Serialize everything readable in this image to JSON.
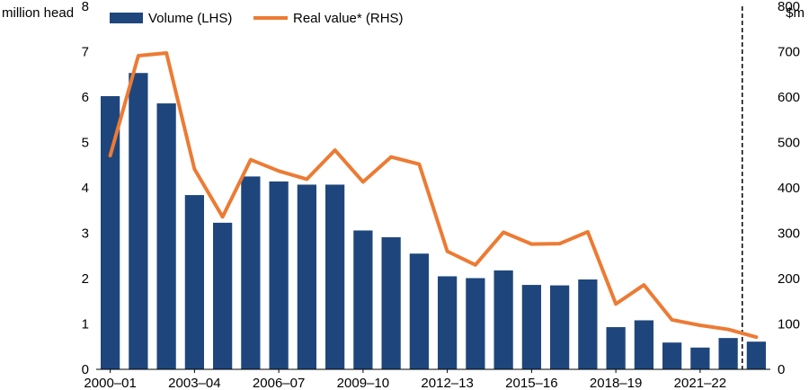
{
  "chart_data": {
    "type": "bar+line",
    "title": "",
    "categories": [
      "2000–01",
      "2001–02",
      "2002–03",
      "2003–04",
      "2004–05",
      "2005–06",
      "2006–07",
      "2007–08",
      "2008–09",
      "2009–10",
      "2010–11",
      "2011–12",
      "2012–13",
      "2013–14",
      "2014–15",
      "2015–16",
      "2016–17",
      "2017–18",
      "2018–19",
      "2019–20",
      "2020–21",
      "2021–22",
      "2022–23",
      "2023–24"
    ],
    "x_tick_labels": [
      "2000–01",
      "2003–04",
      "2006–07",
      "2009–10",
      "2012–13",
      "2015–16",
      "2018–19",
      "2021–22"
    ],
    "y_left_label": "million head",
    "y_right_label": "$m",
    "y_left_ticks": [
      "0",
      "1",
      "2",
      "3",
      "4",
      "5",
      "6",
      "7",
      "8"
    ],
    "y_right_ticks": [
      "0",
      "100",
      "200",
      "300",
      "400",
      "500",
      "600",
      "700",
      "800"
    ],
    "ylim_left": [
      0,
      8
    ],
    "ylim_right": [
      0,
      800
    ],
    "forecast_divider_after": "2022–23",
    "colors": {
      "bar": "#1F467C",
      "line": "#EC7B34",
      "divider": "#000000"
    },
    "series": [
      {
        "name": "Volume (LHS)",
        "axis": "left",
        "kind": "bar",
        "values": [
          6.02,
          6.53,
          5.86,
          3.84,
          3.23,
          4.25,
          4.14,
          4.07,
          4.07,
          3.06,
          2.91,
          2.55,
          2.05,
          2.01,
          2.18,
          1.86,
          1.85,
          1.98,
          0.93,
          1.08,
          0.59,
          0.48,
          0.69,
          0.61
        ]
      },
      {
        "name": "Real value* (RHS)",
        "axis": "right",
        "kind": "line",
        "values": [
          471,
          691,
          697,
          441,
          336,
          462,
          437,
          419,
          483,
          413,
          468,
          452,
          260,
          230,
          302,
          276,
          277,
          303,
          144,
          186,
          109,
          97,
          88,
          71
        ]
      }
    ]
  },
  "legend": {
    "volume_label": "Volume (LHS)",
    "value_label": "Real value* (RHS)"
  }
}
